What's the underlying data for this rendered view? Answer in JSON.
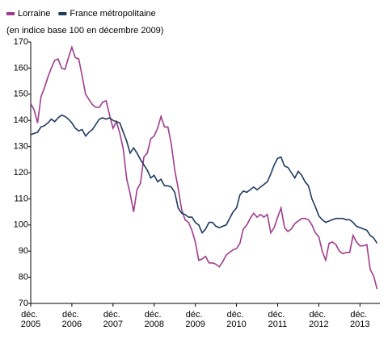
{
  "chart_data": {
    "type": "line",
    "subtitle": "(en indice base 100 en décembre 2009)",
    "categories": [
      "déc. 2005",
      null,
      null,
      null,
      null,
      null,
      null,
      null,
      null,
      null,
      null,
      null,
      "déc. 2006",
      null,
      null,
      null,
      null,
      null,
      null,
      null,
      null,
      null,
      null,
      null,
      "déc. 2007",
      null,
      null,
      null,
      null,
      null,
      null,
      null,
      null,
      null,
      null,
      null,
      "déc. 2008",
      null,
      null,
      null,
      null,
      null,
      null,
      null,
      null,
      null,
      null,
      null,
      "déc. 2009",
      null,
      null,
      null,
      null,
      null,
      null,
      null,
      null,
      null,
      null,
      null,
      "déc. 2010",
      null,
      null,
      null,
      null,
      null,
      null,
      null,
      null,
      null,
      null,
      null,
      "déc. 2011",
      null,
      null,
      null,
      null,
      null,
      null,
      null,
      null,
      null,
      null,
      null,
      "déc. 2012",
      null,
      null,
      null,
      null,
      null,
      null,
      null,
      null,
      null,
      null,
      null,
      "déc. 2013",
      null,
      null,
      null,
      null,
      null
    ],
    "ylim": [
      70,
      170
    ],
    "yticks": [
      70,
      80,
      90,
      100,
      110,
      120,
      130,
      140,
      150,
      160,
      170
    ],
    "series": [
      {
        "name": "Lorraine",
        "color": "#a03c8c",
        "values": [
          146.5,
          144,
          139,
          149,
          152.5,
          156.5,
          160,
          163,
          163.5,
          160,
          159.5,
          164,
          168,
          164,
          163.5,
          157,
          150,
          148,
          146,
          145,
          145,
          147,
          147.5,
          142,
          137,
          139.5,
          135,
          129,
          117.5,
          112,
          105,
          113.5,
          116,
          126,
          127.5,
          133,
          134,
          137,
          141.5,
          137.5,
          137.5,
          131,
          121,
          114,
          106,
          102,
          101,
          98,
          93.5,
          86.5,
          87,
          88,
          85.5,
          85.5,
          85,
          84,
          86,
          88.5,
          89.5,
          90.5,
          91,
          93,
          98.5,
          100,
          102.5,
          104.5,
          103,
          104,
          103,
          104,
          97,
          99,
          103,
          106.5,
          99,
          97.5,
          98.5,
          100.5,
          101.5,
          102.5,
          102.5,
          102,
          100,
          97,
          95.5,
          90,
          86.5,
          93,
          93.5,
          92.5,
          90,
          89,
          89.5,
          89.5,
          96,
          93.5,
          92,
          92,
          92.5,
          83,
          80.5,
          75.5
        ]
      },
      {
        "name": "France métropolitaine",
        "color": "#1f3a60",
        "values": [
          134.5,
          135,
          135.5,
          137.5,
          138,
          139,
          140.5,
          139.5,
          141,
          142,
          141.5,
          140.5,
          139,
          137,
          136,
          136.5,
          134,
          135.5,
          136.5,
          138.5,
          140.5,
          141,
          140.5,
          141,
          140,
          139.5,
          139,
          135.5,
          132,
          127.5,
          129.5,
          127.5,
          125,
          123,
          121,
          118,
          119,
          116.5,
          117.5,
          115,
          115,
          114.5,
          112.5,
          106.5,
          104.5,
          104,
          103,
          103,
          101,
          100,
          97,
          98.5,
          101,
          101,
          99.5,
          99,
          99.5,
          100,
          102.5,
          105,
          106.5,
          111.5,
          113,
          112.5,
          113.5,
          114.5,
          113.5,
          114.5,
          115.5,
          116.5,
          119.5,
          123,
          125.5,
          126,
          122.5,
          122,
          120,
          118,
          120.5,
          119,
          116.5,
          115,
          110,
          107,
          103.5,
          102,
          101,
          101.5,
          102,
          102.5,
          102.5,
          102.5,
          102,
          102,
          101,
          99.5,
          99,
          98.5,
          98,
          96,
          95,
          93
        ]
      }
    ]
  }
}
